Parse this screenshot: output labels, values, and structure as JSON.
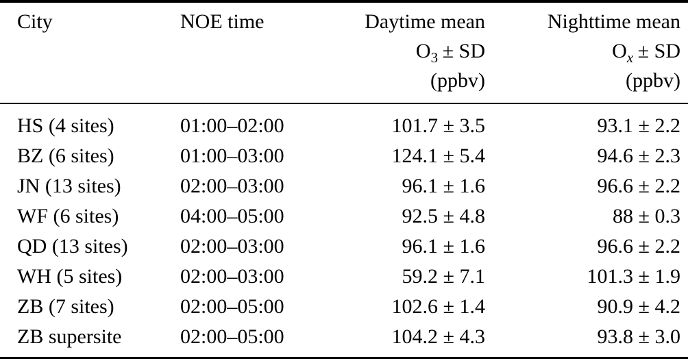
{
  "table": {
    "header": {
      "city": "City",
      "noe_time": "NOE time",
      "daytime": {
        "line1": "Daytime mean",
        "species_symbol": "O",
        "species_sub": "3",
        "pm_sd": "± SD",
        "unit": "(ppbv)"
      },
      "nighttime": {
        "line1": "Nighttime mean",
        "species_symbol": "O",
        "species_sub": "x",
        "pm_sd": "± SD",
        "unit": "(ppbv)"
      }
    },
    "rows": [
      {
        "city": "HS (4 sites)",
        "noe_time": "01:00–02:00",
        "daytime": "101.7 ± 3.5",
        "nighttime": "93.1 ± 2.2"
      },
      {
        "city": "BZ (6 sites)",
        "noe_time": "01:00–03:00",
        "daytime": "124.1 ± 5.4",
        "nighttime": "94.6 ± 2.3"
      },
      {
        "city": "JN (13 sites)",
        "noe_time": "02:00–03:00",
        "daytime": "96.1 ± 1.6",
        "nighttime": "96.6 ± 2.2"
      },
      {
        "city": "WF (6 sites)",
        "noe_time": "04:00–05:00",
        "daytime": "92.5 ± 4.8",
        "nighttime": "88 ± 0.3"
      },
      {
        "city": "QD (13 sites)",
        "noe_time": "02:00–03:00",
        "daytime": "96.1 ± 1.6",
        "nighttime": "96.6 ± 2.2"
      },
      {
        "city": "WH (5 sites)",
        "noe_time": "02:00–03:00",
        "daytime": "59.2 ± 7.1",
        "nighttime": "101.3 ± 1.9"
      },
      {
        "city": "ZB (7 sites)",
        "noe_time": "02:00–05:00",
        "daytime": "102.6 ± 1.4",
        "nighttime": "90.9 ± 4.2"
      },
      {
        "city": "ZB supersite",
        "noe_time": "02:00–05:00",
        "daytime": "104.2 ± 4.3",
        "nighttime": "93.8 ± 3.0"
      }
    ],
    "colors": {
      "text": "#000000",
      "background": "#ffffff",
      "rule": "#000000"
    }
  }
}
